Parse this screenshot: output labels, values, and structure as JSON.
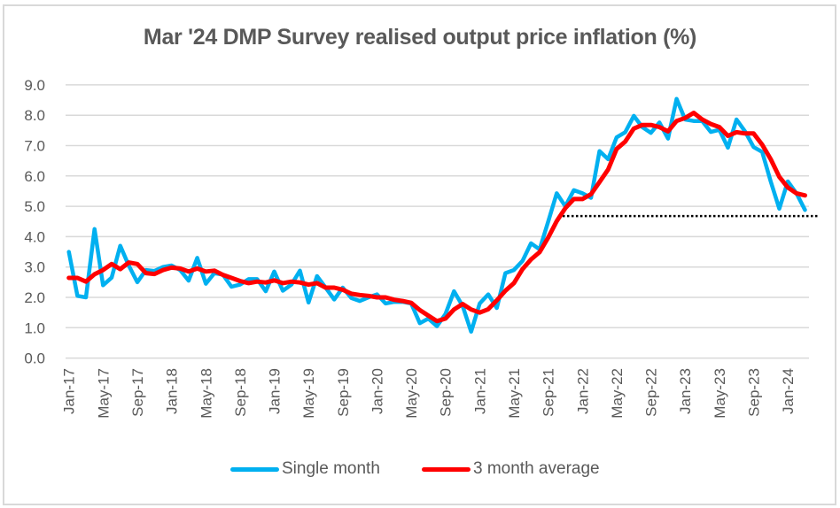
{
  "chart_data": {
    "type": "line",
    "title": "Mar '24 DMP Survey realised output price inflation (%)",
    "xlabel": "",
    "ylabel": "",
    "ylim": [
      0,
      9
    ],
    "yticks": [
      "0.0",
      "1.0",
      "2.0",
      "3.0",
      "4.0",
      "5.0",
      "6.0",
      "7.0",
      "8.0",
      "9.0"
    ],
    "grid": "horizontal",
    "x_start": "Jan-17",
    "x_end": "Mar-24",
    "xtick_labels": [
      "Jan-17",
      "May-17",
      "Sep-17",
      "Jan-18",
      "May-18",
      "Sep-18",
      "Jan-19",
      "May-19",
      "Sep-19",
      "Jan-20",
      "May-20",
      "Sep-20",
      "Jan-21",
      "May-21",
      "Sep-21",
      "Jan-22",
      "May-22",
      "Sep-22",
      "Jan-23",
      "May-23",
      "Sep-23",
      "Jan-24"
    ],
    "xtick_every_months": 4,
    "legend_position": "bottom",
    "series": [
      {
        "name": "Single month",
        "color": "#00b0f0",
        "values": [
          3.5,
          2.05,
          2.0,
          4.25,
          2.4,
          2.65,
          3.7,
          3.05,
          2.5,
          2.9,
          2.87,
          3.0,
          3.05,
          2.9,
          2.55,
          3.3,
          2.45,
          2.8,
          2.75,
          2.35,
          2.42,
          2.6,
          2.6,
          2.2,
          2.85,
          2.22,
          2.42,
          2.88,
          1.83,
          2.7,
          2.32,
          1.93,
          2.32,
          1.98,
          1.88,
          2.0,
          2.1,
          1.8,
          1.85,
          1.85,
          1.8,
          1.15,
          1.3,
          1.05,
          1.45,
          2.2,
          1.72,
          0.87,
          1.8,
          2.1,
          1.65,
          2.8,
          2.9,
          3.2,
          3.78,
          3.58,
          4.5,
          5.43,
          5.0,
          5.53,
          5.43,
          5.28,
          6.82,
          6.55,
          7.27,
          7.44,
          7.98,
          7.61,
          7.42,
          7.76,
          7.23,
          8.54,
          7.86,
          7.81,
          7.81,
          7.45,
          7.52,
          6.93,
          7.86,
          7.47,
          6.95,
          6.79,
          5.82,
          4.92,
          5.82,
          5.43,
          4.88
        ]
      },
      {
        "name": "3 month average",
        "color": "#ff0000",
        "values": [
          2.64,
          2.64,
          2.52,
          2.76,
          2.9,
          3.1,
          2.93,
          3.15,
          3.1,
          2.8,
          2.77,
          2.9,
          2.98,
          2.95,
          2.85,
          2.95,
          2.85,
          2.88,
          2.74,
          2.64,
          2.54,
          2.47,
          2.52,
          2.49,
          2.56,
          2.47,
          2.52,
          2.49,
          2.42,
          2.47,
          2.32,
          2.32,
          2.25,
          2.12,
          2.08,
          2.05,
          2.0,
          2.0,
          1.92,
          1.88,
          1.82,
          1.58,
          1.4,
          1.22,
          1.3,
          1.6,
          1.78,
          1.6,
          1.5,
          1.61,
          1.9,
          2.22,
          2.47,
          2.93,
          3.25,
          3.49,
          3.97,
          4.51,
          4.94,
          5.24,
          5.24,
          5.4,
          5.8,
          6.21,
          6.89,
          7.13,
          7.56,
          7.68,
          7.68,
          7.61,
          7.47,
          7.81,
          7.91,
          8.08,
          7.86,
          7.71,
          7.61,
          7.32,
          7.44,
          7.4,
          7.4,
          7.03,
          6.55,
          5.97,
          5.62,
          5.43,
          5.36
        ]
      }
    ],
    "reference_line": {
      "style": "dotted",
      "color": "#000000",
      "value": 4.68,
      "from": "Nov-21",
      "to": "Mar-24"
    }
  },
  "legend": {
    "items": [
      {
        "label": "Single month",
        "color": "#00b0f0"
      },
      {
        "label": "3 month average",
        "color": "#ff0000"
      }
    ]
  }
}
